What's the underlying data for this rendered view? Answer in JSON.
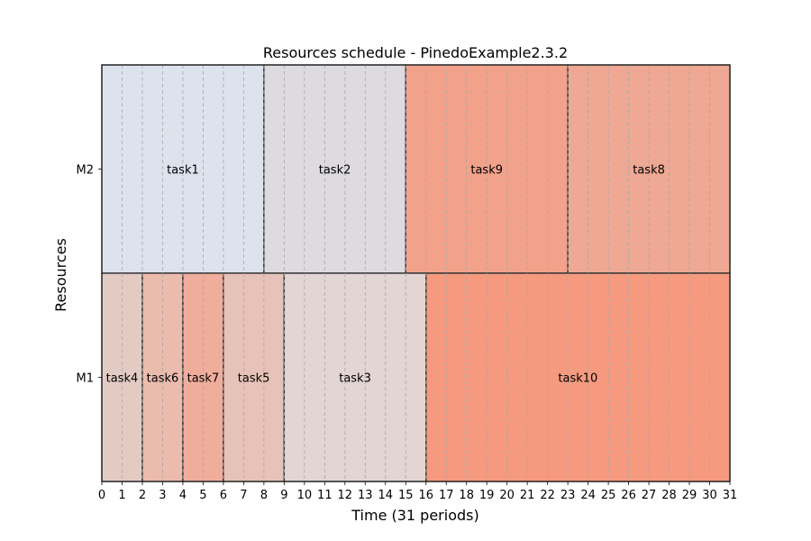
{
  "chart_data": {
    "type": "gantt",
    "title": "Resources schedule - PinedoExample2.3.2",
    "xlabel": "Time (31 periods)",
    "ylabel": "Resources",
    "xlim": [
      0,
      31
    ],
    "xticks": [
      0,
      1,
      2,
      3,
      4,
      5,
      6,
      7,
      8,
      9,
      10,
      11,
      12,
      13,
      14,
      15,
      16,
      17,
      18,
      19,
      20,
      21,
      22,
      23,
      24,
      25,
      26,
      27,
      28,
      29,
      30,
      31
    ],
    "resources": [
      "M2",
      "M1"
    ],
    "grid": "vertical dashed at each integer period",
    "tasks": [
      {
        "name": "task1",
        "resource": "M2",
        "start": 0,
        "end": 8,
        "color": "#dce3ed"
      },
      {
        "name": "task2",
        "resource": "M2",
        "start": 8,
        "end": 15,
        "color": "#dddbe0"
      },
      {
        "name": "task9",
        "resource": "M2",
        "start": 15,
        "end": 23,
        "color": "#f2a28a"
      },
      {
        "name": "task8",
        "resource": "M2",
        "start": 23,
        "end": 31,
        "color": "#eea893"
      },
      {
        "name": "task4",
        "resource": "M1",
        "start": 0,
        "end": 2,
        "color": "#e3cbc4"
      },
      {
        "name": "task6",
        "resource": "M1",
        "start": 2,
        "end": 4,
        "color": "#ebbbad"
      },
      {
        "name": "task7",
        "resource": "M1",
        "start": 4,
        "end": 6,
        "color": "#f0ad9c"
      },
      {
        "name": "task5",
        "resource": "M1",
        "start": 6,
        "end": 9,
        "color": "#e7c2b8"
      },
      {
        "name": "task3",
        "resource": "M1",
        "start": 9,
        "end": 16,
        "color": "#e2d5d4"
      },
      {
        "name": "task10",
        "resource": "M1",
        "start": 16,
        "end": 31,
        "color": "#f59a7f"
      }
    ]
  }
}
